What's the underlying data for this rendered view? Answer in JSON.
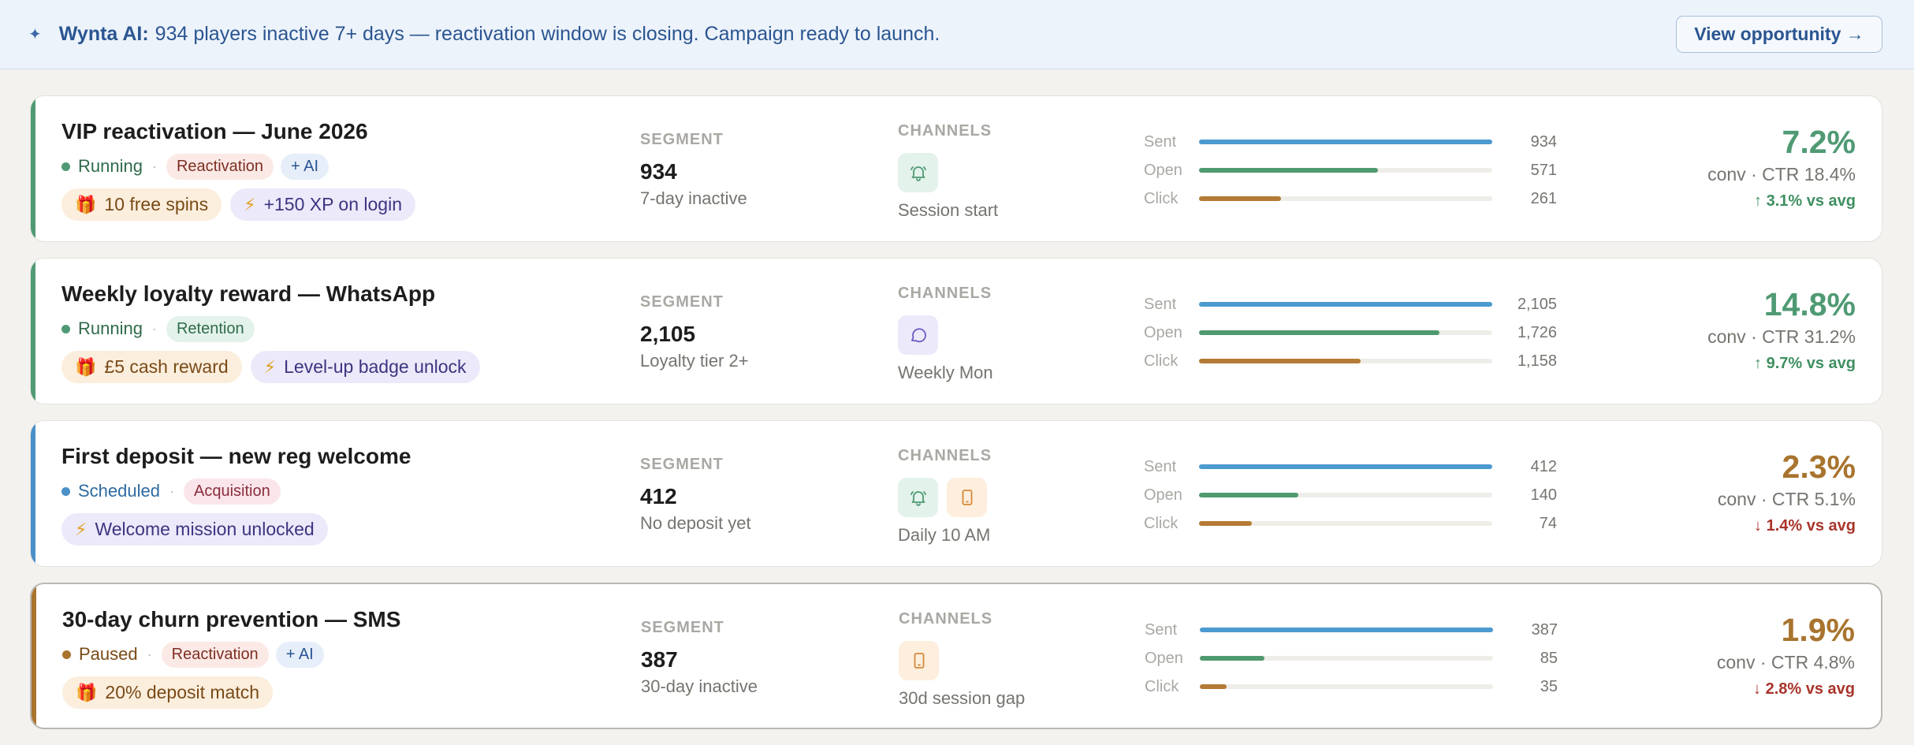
{
  "banner": {
    "spark": "✦",
    "ai_label": "Wynta AI:",
    "message": "934 players inactive 7+ days — reactivation window is closing. Campaign ready to launch.",
    "button": "View opportunity →"
  },
  "labels": {
    "segment": "SEGMENT",
    "channels": "CHANNELS",
    "sent": "Sent",
    "open": "Open",
    "click": "Click"
  },
  "colors": {
    "running": "#4f9a74",
    "scheduled": "#4a90c9",
    "paused": "#a8742e",
    "bar_sent": "#4b9ad0",
    "bar_open": "#4f9a6e",
    "bar_click": "#b57a35",
    "good": "#4f9a74",
    "bad": "#a8742e",
    "delta_up": "#3f8f61",
    "delta_down": "#a8342a"
  },
  "campaigns": [
    {
      "title": "VIP reactivation — June 2026",
      "status": "Running",
      "status_key": "running",
      "tags": [
        {
          "label": "Reactivation",
          "kind": "reactivation"
        },
        {
          "label": "+ AI",
          "kind": "ai"
        }
      ],
      "rewards": [
        {
          "icon": "🎁",
          "icon_name": "gift-icon",
          "label": "10 free spins",
          "kind": "gift"
        },
        {
          "icon": "⚡",
          "icon_name": "lightning-icon",
          "label": "+150 XP on login",
          "kind": "bolt"
        }
      ],
      "segment_count": "934",
      "segment_desc": "7-day inactive",
      "channels": [
        {
          "icon": "bell",
          "icon_name": "bell-icon"
        }
      ],
      "channel_desc": "Session start",
      "sent": "934",
      "open": "571",
      "click": "261",
      "sent_n": 934,
      "open_n": 571,
      "click_n": 261,
      "conversion": "7.2%",
      "ctr": "conv · CTR 18.4%",
      "delta": "↑ 3.1% vs avg",
      "delta_dir": "up",
      "perf": "good"
    },
    {
      "title": "Weekly loyalty reward — WhatsApp",
      "status": "Running",
      "status_key": "running",
      "tags": [
        {
          "label": "Retention",
          "kind": "retention"
        }
      ],
      "rewards": [
        {
          "icon": "🎁",
          "icon_name": "gift-icon",
          "label": "£5 cash reward",
          "kind": "gift"
        },
        {
          "icon": "⚡",
          "icon_name": "lightning-icon",
          "label": "Level-up badge unlock",
          "kind": "bolt"
        }
      ],
      "segment_count": "2,105",
      "segment_desc": "Loyalty tier 2+",
      "channels": [
        {
          "icon": "chat",
          "icon_name": "chat-bubble-icon"
        }
      ],
      "channel_desc": "Weekly Mon",
      "sent": "2,105",
      "open": "1,726",
      "click": "1,158",
      "sent_n": 2105,
      "open_n": 1726,
      "click_n": 1158,
      "conversion": "14.8%",
      "ctr": "conv · CTR 31.2%",
      "delta": "↑ 9.7% vs avg",
      "delta_dir": "up",
      "perf": "good"
    },
    {
      "title": "First deposit — new reg welcome",
      "status": "Scheduled",
      "status_key": "scheduled",
      "tags": [
        {
          "label": "Acquisition",
          "kind": "acquisition"
        }
      ],
      "rewards": [
        {
          "icon": "⚡",
          "icon_name": "lightning-icon",
          "label": "Welcome mission unlocked",
          "kind": "bolt"
        }
      ],
      "segment_count": "412",
      "segment_desc": "No deposit yet",
      "channels": [
        {
          "icon": "bell",
          "icon_name": "bell-icon"
        },
        {
          "icon": "phone",
          "icon_name": "phone-icon"
        }
      ],
      "channel_desc": "Daily 10 AM",
      "sent": "412",
      "open": "140",
      "click": "74",
      "sent_n": 412,
      "open_n": 140,
      "click_n": 74,
      "conversion": "2.3%",
      "ctr": "conv · CTR 5.1%",
      "delta": "↓ 1.4% vs avg",
      "delta_dir": "down",
      "perf": "bad"
    },
    {
      "title": "30-day churn prevention — SMS",
      "status": "Paused",
      "status_key": "paused",
      "tags": [
        {
          "label": "Reactivation",
          "kind": "reactivation"
        },
        {
          "label": "+ AI",
          "kind": "ai"
        }
      ],
      "rewards": [
        {
          "icon": "🎁",
          "icon_name": "gift-icon",
          "label": "20% deposit match",
          "kind": "gift"
        }
      ],
      "segment_count": "387",
      "segment_desc": "30-day inactive",
      "channels": [
        {
          "icon": "phone",
          "icon_name": "phone-icon"
        }
      ],
      "channel_desc": "30d session gap",
      "sent": "387",
      "open": "85",
      "click": "35",
      "sent_n": 387,
      "open_n": 85,
      "click_n": 35,
      "conversion": "1.9%",
      "ctr": "conv · CTR 4.8%",
      "delta": "↓ 2.8% vs avg",
      "delta_dir": "down",
      "perf": "bad"
    }
  ]
}
